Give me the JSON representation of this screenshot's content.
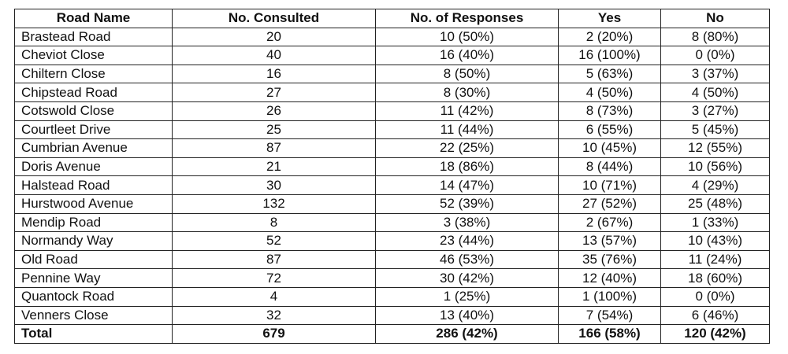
{
  "table": {
    "header": [
      "Road Name",
      "No. Consulted",
      "No. of Responses",
      "Yes",
      "No"
    ],
    "rows": [
      [
        "Brastead Road",
        "20",
        "10 (50%)",
        "2 (20%)",
        "8 (80%)"
      ],
      [
        "Cheviot Close",
        "40",
        "16 (40%)",
        "16 (100%)",
        "0 (0%)"
      ],
      [
        "Chiltern Close",
        "16",
        "8 (50%)",
        "5 (63%)",
        "3 (37%)"
      ],
      [
        "Chipstead Road",
        "27",
        "8 (30%)",
        "4 (50%)",
        "4 (50%)"
      ],
      [
        "Cotswold Close",
        "26",
        "11 (42%)",
        "8 (73%)",
        "3 (27%)"
      ],
      [
        "Courtleet Drive",
        "25",
        "11 (44%)",
        "6 (55%)",
        "5 (45%)"
      ],
      [
        "Cumbrian Avenue",
        "87",
        "22 (25%)",
        "10 (45%)",
        "12 (55%)"
      ],
      [
        "Doris Avenue",
        "21",
        "18 (86%)",
        "8 (44%)",
        "10 (56%)"
      ],
      [
        "Halstead Road",
        "30",
        "14 (47%)",
        "10 (71%)",
        "4 (29%)"
      ],
      [
        "Hurstwood Avenue",
        "132",
        "52 (39%)",
        "27 (52%)",
        "25 (48%)"
      ],
      [
        "Mendip Road",
        "8",
        "3 (38%)",
        "2 (67%)",
        "1 (33%)"
      ],
      [
        "Normandy Way",
        "52",
        "23 (44%)",
        "13 (57%)",
        "10 (43%)"
      ],
      [
        "Old Road",
        "87",
        "46 (53%)",
        "35 (76%)",
        "11 (24%)"
      ],
      [
        "Pennine Way",
        "72",
        "30 (42%)",
        "12 (40%)",
        "18 (60%)"
      ],
      [
        "Quantock Road",
        "4",
        "1 (25%)",
        "1 (100%)",
        "0 (0%)"
      ],
      [
        "Venners Close",
        "32",
        "13 (40%)",
        "7 (54%)",
        "6 (46%)"
      ]
    ],
    "total": [
      "Total",
      "679",
      "286 (42%)",
      "166 (58%)",
      "120 (42%)"
    ]
  }
}
